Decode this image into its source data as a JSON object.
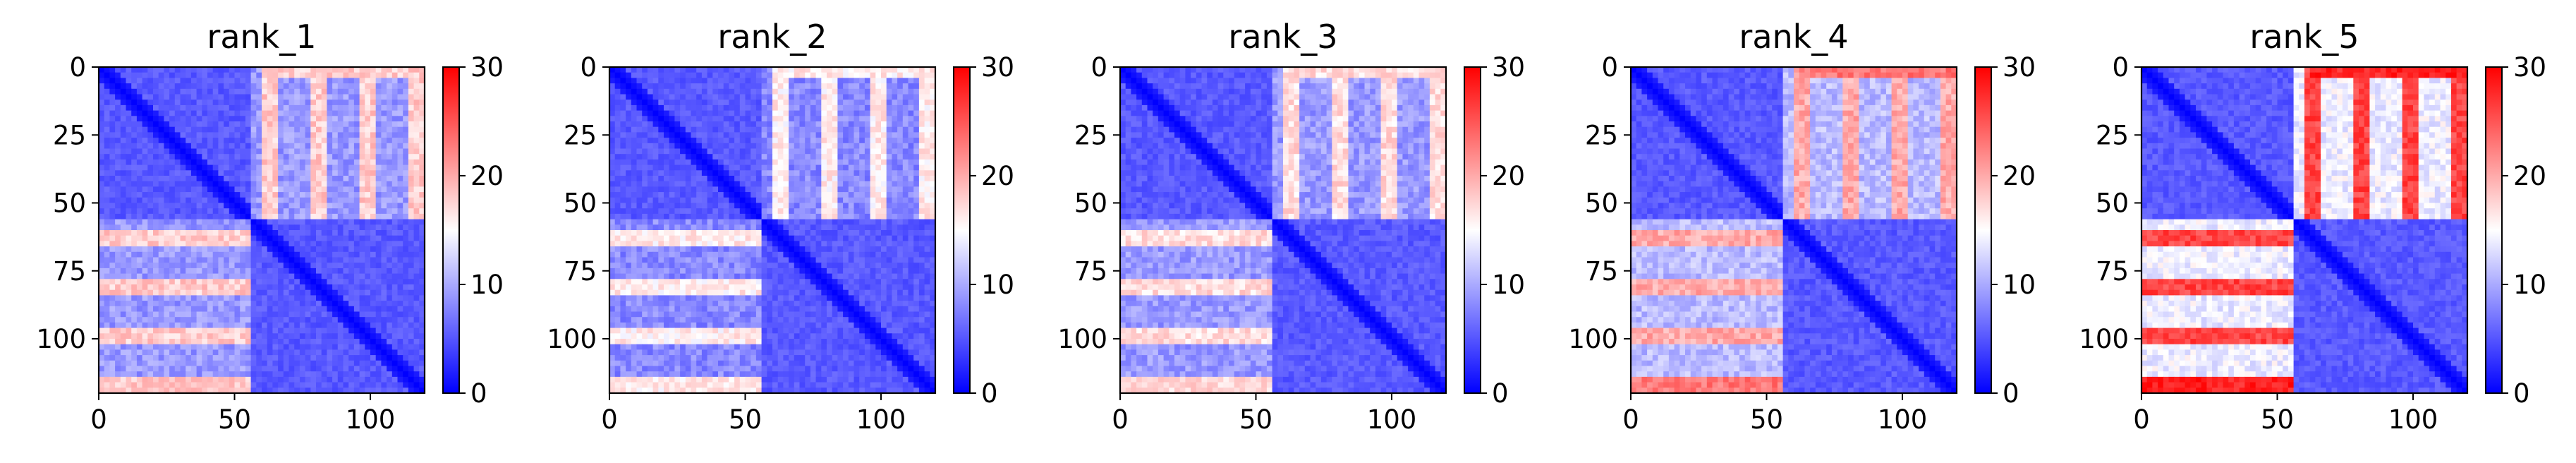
{
  "chart_data": [
    {
      "type": "heatmap",
      "title": "rank_1",
      "x_ticks": [
        0,
        50,
        100
      ],
      "y_ticks": [
        0,
        25,
        50,
        75,
        100
      ],
      "x_range": [
        0,
        120
      ],
      "y_range": [
        0,
        120
      ],
      "y_inverted": true,
      "block_boundary": 55,
      "diagonal_value": 0,
      "within_block_level": 4,
      "between_block_level": 9,
      "between_block_hotspots": 18,
      "edge_band_level": 16,
      "colorbar": {
        "min": 0,
        "max": 30,
        "ticks": [
          0,
          10,
          20,
          30
        ],
        "colors": [
          "#0000ff",
          "#ffffff",
          "#ff0000"
        ]
      }
    },
    {
      "type": "heatmap",
      "title": "rank_2",
      "x_ticks": [
        0,
        50,
        100
      ],
      "y_ticks": [
        0,
        25,
        50,
        75,
        100
      ],
      "x_range": [
        0,
        120
      ],
      "y_range": [
        0,
        120
      ],
      "y_inverted": true,
      "block_boundary": 55,
      "diagonal_value": 0,
      "within_block_level": 4,
      "between_block_level": 8,
      "between_block_hotspots": 16,
      "edge_band_level": 14,
      "colorbar": {
        "min": 0,
        "max": 30,
        "ticks": [
          0,
          10,
          20,
          30
        ],
        "colors": [
          "#0000ff",
          "#ffffff",
          "#ff0000"
        ]
      }
    },
    {
      "type": "heatmap",
      "title": "rank_3",
      "x_ticks": [
        0,
        50,
        100
      ],
      "y_ticks": [
        0,
        25,
        50,
        75,
        100
      ],
      "x_range": [
        0,
        120
      ],
      "y_range": [
        0,
        120
      ],
      "y_inverted": true,
      "block_boundary": 55,
      "diagonal_value": 0,
      "within_block_level": 4,
      "between_block_level": 9,
      "between_block_hotspots": 17,
      "edge_band_level": 15,
      "colorbar": {
        "min": 0,
        "max": 30,
        "ticks": [
          0,
          10,
          20,
          30
        ],
        "colors": [
          "#0000ff",
          "#ffffff",
          "#ff0000"
        ]
      }
    },
    {
      "type": "heatmap",
      "title": "rank_4",
      "x_ticks": [
        0,
        50,
        100
      ],
      "y_ticks": [
        0,
        25,
        50,
        75,
        100
      ],
      "x_range": [
        0,
        120
      ],
      "y_range": [
        0,
        120
      ],
      "y_inverted": true,
      "block_boundary": 55,
      "diagonal_value": 0,
      "within_block_level": 4,
      "between_block_level": 11,
      "between_block_hotspots": 20,
      "edge_band_level": 21,
      "colorbar": {
        "min": 0,
        "max": 30,
        "ticks": [
          0,
          10,
          20,
          30
        ],
        "colors": [
          "#0000ff",
          "#ffffff",
          "#ff0000"
        ]
      }
    },
    {
      "type": "heatmap",
      "title": "rank_5",
      "x_ticks": [
        0,
        50,
        100
      ],
      "y_ticks": [
        0,
        25,
        50,
        75,
        100
      ],
      "x_range": [
        0,
        120
      ],
      "y_range": [
        0,
        120
      ],
      "y_inverted": true,
      "block_boundary": 55,
      "diagonal_value": 0,
      "within_block_level": 4,
      "between_block_level": 14,
      "between_block_hotspots": 26,
      "edge_band_level": 26,
      "colorbar": {
        "min": 0,
        "max": 30,
        "ticks": [
          0,
          10,
          20,
          30
        ],
        "colors": [
          "#0000ff",
          "#ffffff",
          "#ff0000"
        ]
      }
    }
  ]
}
